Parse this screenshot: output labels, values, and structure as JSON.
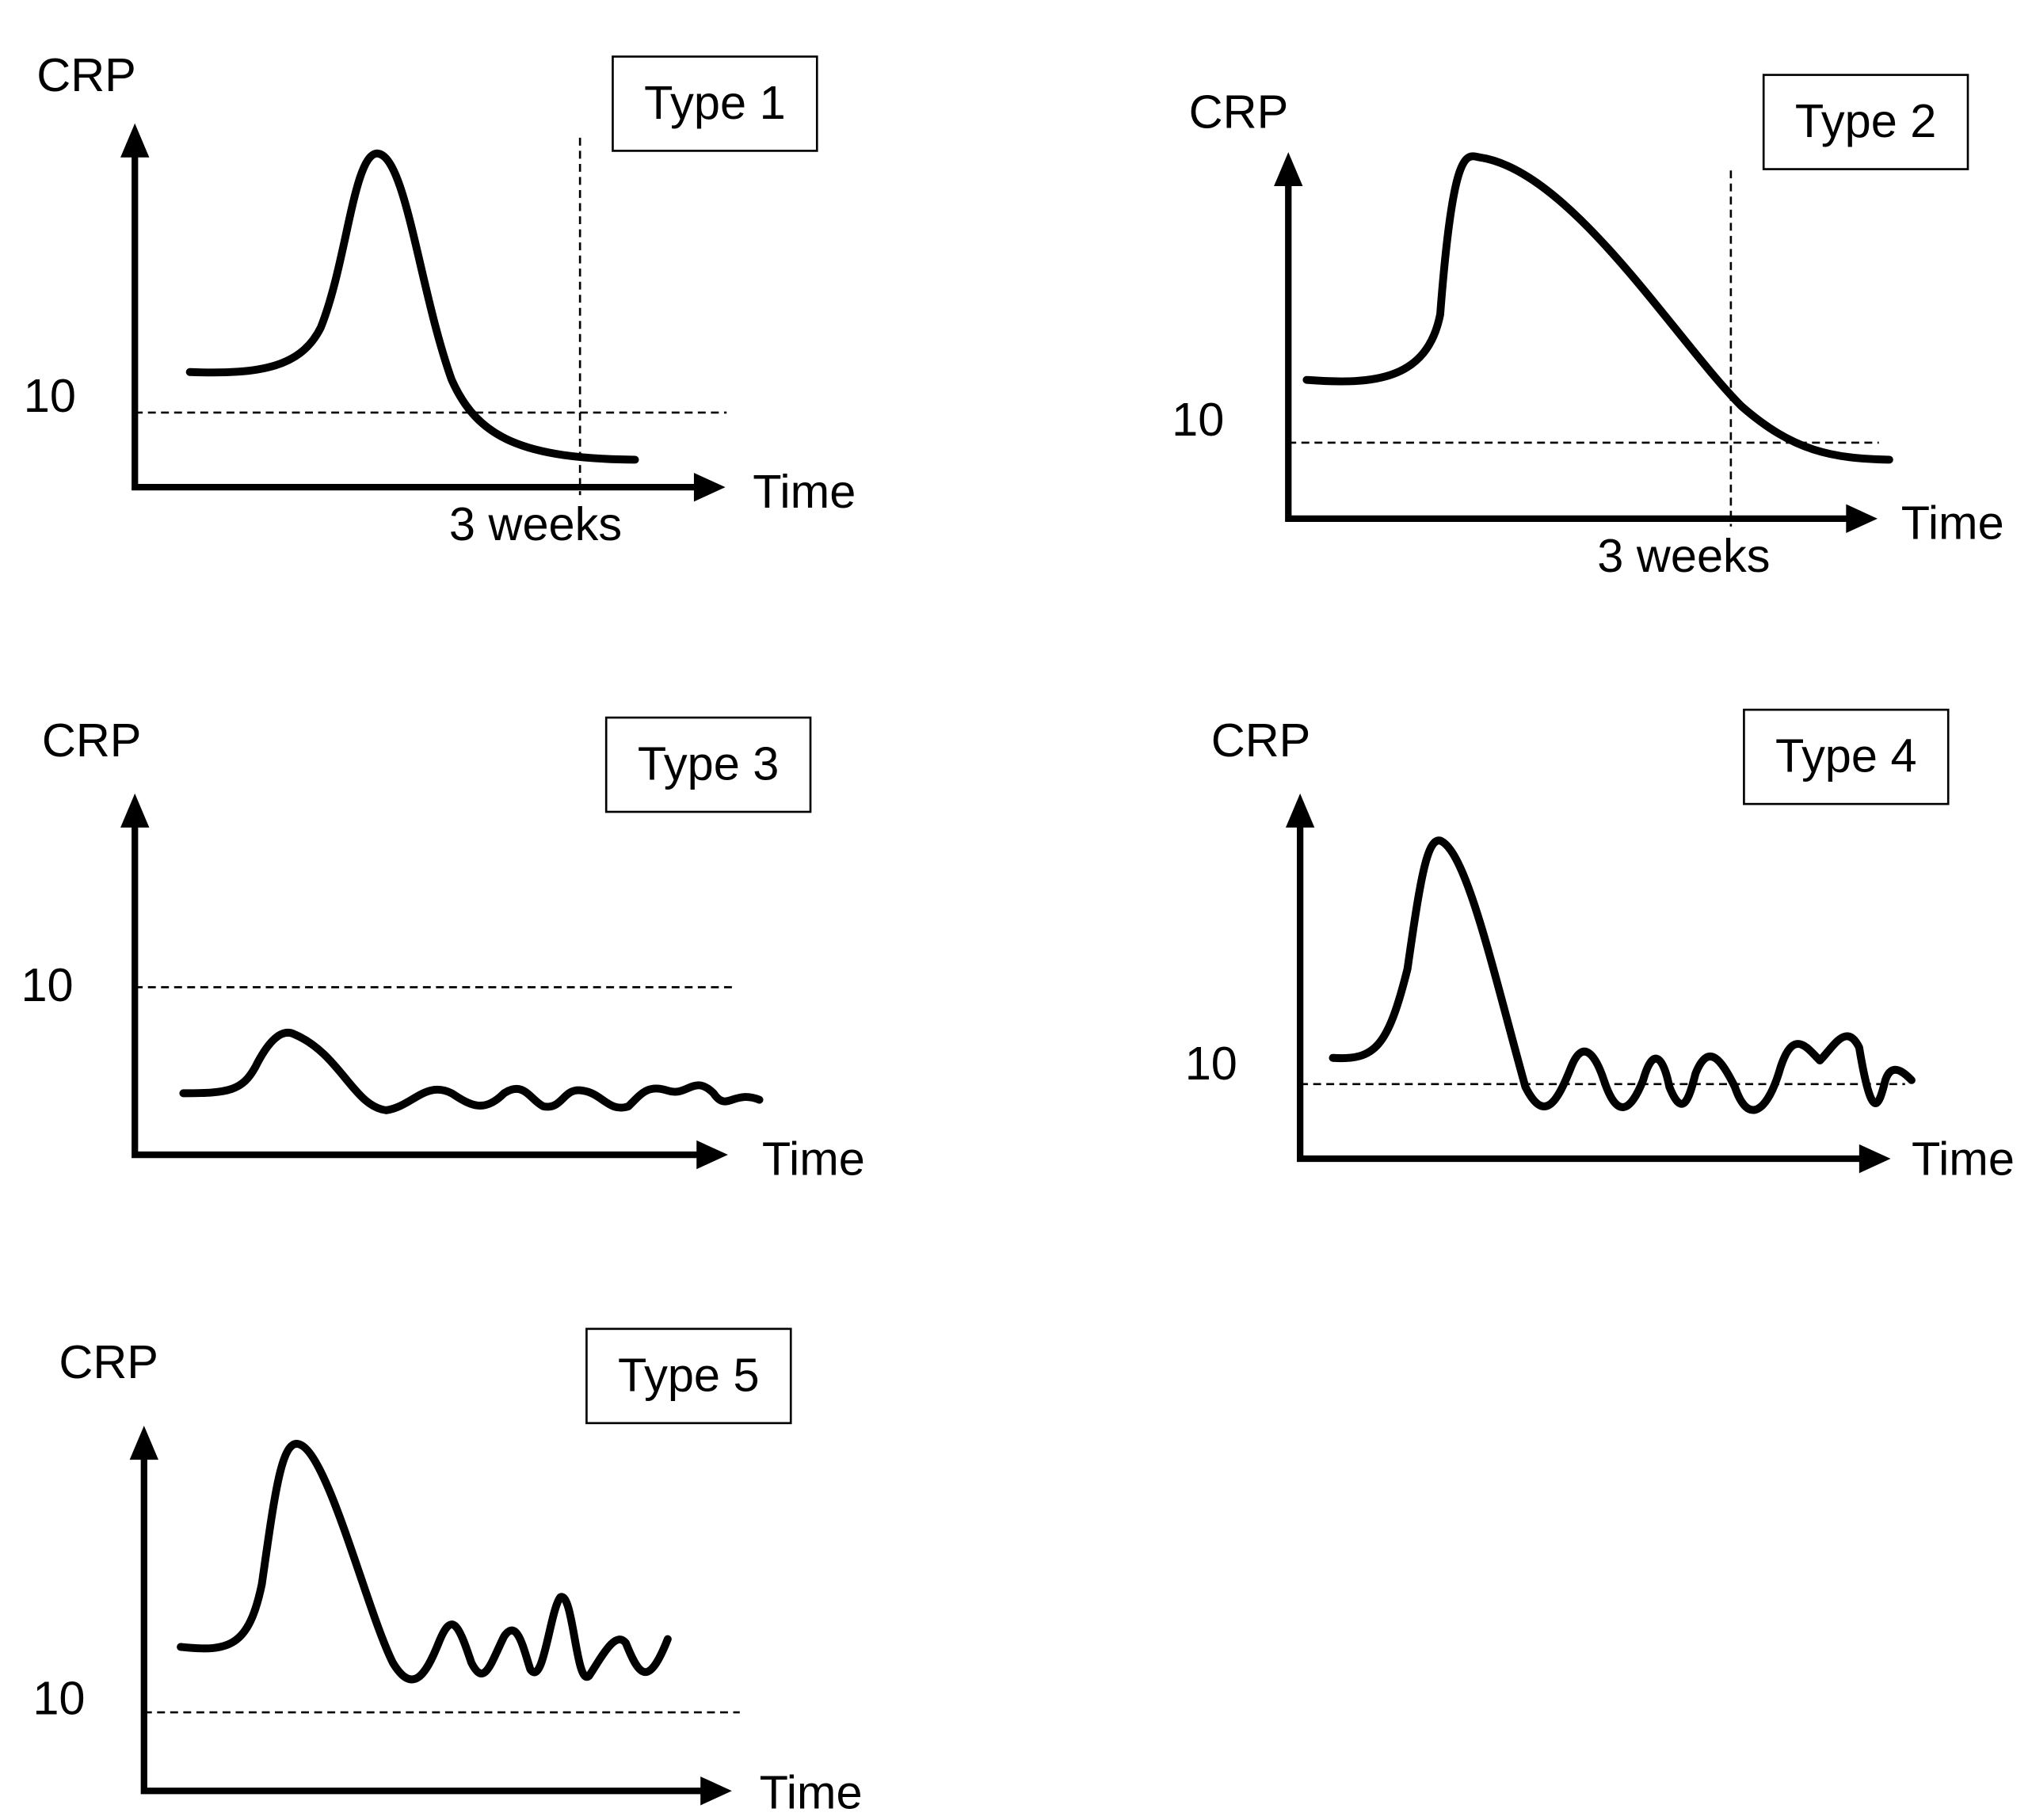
{
  "panels": [
    {
      "type_label": "Type 1",
      "y_axis_label": "CRP",
      "x_axis_label": "Time",
      "threshold_label": "10",
      "marker_label": "3 weeks"
    },
    {
      "type_label": "Type 2",
      "y_axis_label": "CRP",
      "x_axis_label": "Time",
      "threshold_label": "10",
      "marker_label": "3 weeks"
    },
    {
      "type_label": "Type 3",
      "y_axis_label": "CRP",
      "x_axis_label": "Time",
      "threshold_label": "10"
    },
    {
      "type_label": "Type 4",
      "y_axis_label": "CRP",
      "x_axis_label": "Time",
      "threshold_label": "10"
    },
    {
      "type_label": "Type 5",
      "y_axis_label": "CRP",
      "x_axis_label": "Time",
      "threshold_label": "10"
    }
  ]
}
